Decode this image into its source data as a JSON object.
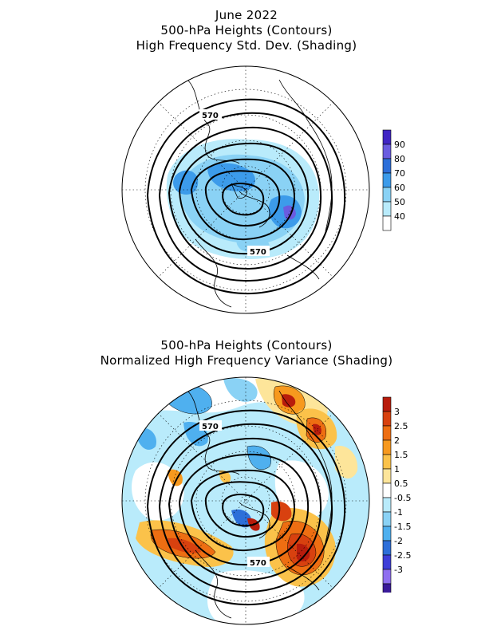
{
  "top_panel": {
    "title_lines": [
      "June 2022",
      "500-hPa Heights (Contours)",
      "High Frequency Std. Dev. (Shading)"
    ],
    "contour_labels": [
      "570",
      "570"
    ],
    "legend": {
      "labels": [
        "40",
        "50",
        "60",
        "70",
        "80",
        "90"
      ],
      "colors": [
        "#ffffff",
        "#b9ebfb",
        "#8ad2f5",
        "#3c9bea",
        "#2d6fd9",
        "#6a5ce0",
        "#4024c4"
      ]
    }
  },
  "bottom_panel": {
    "title_lines": [
      "500-hPa Heights (Contours)",
      "Normalized High Frequency Variance (Shading)"
    ],
    "contour_labels": [
      "570",
      "570"
    ],
    "legend": {
      "labels": [
        "3",
        "2.5",
        "2",
        "1.5",
        "1",
        "0.5",
        "-0.5",
        "-1",
        "-1.5",
        "-2",
        "-2.5",
        "-3"
      ],
      "colors": [
        "#b81c0c",
        "#d8410f",
        "#ee6e12",
        "#f7991e",
        "#fbc24a",
        "#fde59a",
        "#ffffff",
        "#b9ebfb",
        "#8ad2f5",
        "#4fb0ef",
        "#2d6fd9",
        "#3e3ed8",
        "#8f6ff0",
        "#3a1a9a"
      ]
    }
  }
}
